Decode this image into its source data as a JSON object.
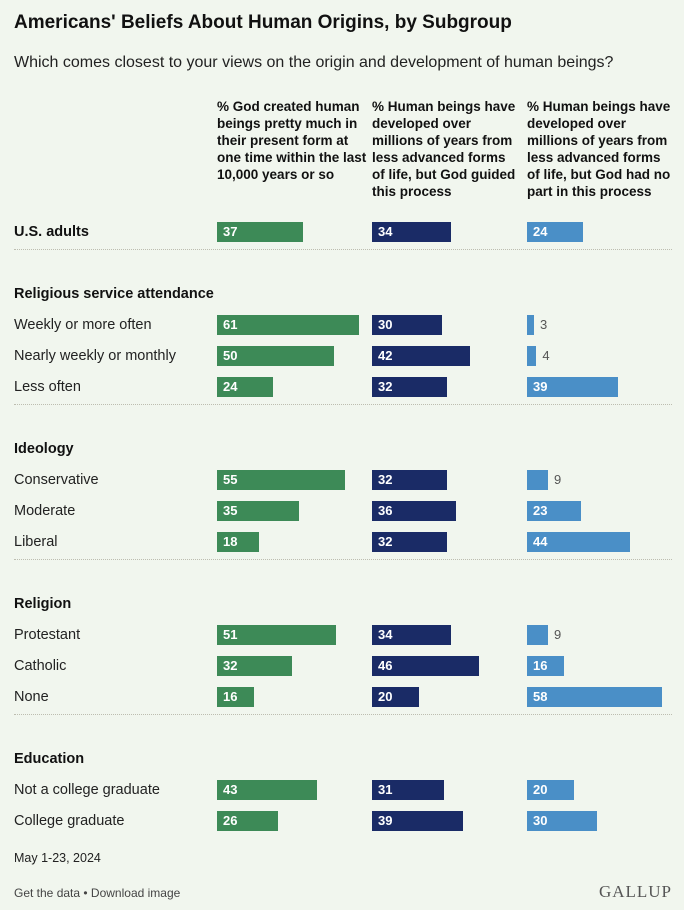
{
  "title": "Americans' Beliefs About Human Origins, by Subgroup",
  "subtitle": "Which comes closest to your views on the origin and development of human beings?",
  "date_note": "May 1-23, 2024",
  "footer": {
    "get_data": "Get the data",
    "separator": " • ",
    "download": "Download image"
  },
  "brand": "GALLUP",
  "colors": {
    "god_created": "#3d8a57",
    "god_guided": "#1a2b66",
    "no_god": "#4a8fc7"
  },
  "chart_data": {
    "type": "bar",
    "unit": "%",
    "series": [
      {
        "name": "% God created human beings pretty much in their present form at one time within the last 10,000 years or so",
        "color": "#3d8a57"
      },
      {
        "name": "% Human beings have developed over millions of years from less advanced forms of life, but God guided this process",
        "color": "#1a2b66"
      },
      {
        "name": "% Human beings have developed over millions of years from less advanced forms of life, but God had no part in this process",
        "color": "#4a8fc7"
      }
    ],
    "xlim": [
      0,
      100
    ],
    "groups": [
      {
        "header": "",
        "rows": [
          {
            "label": "U.S. adults",
            "bold": true,
            "values": [
              37,
              34,
              24
            ]
          }
        ]
      },
      {
        "header": "Religious service attendance",
        "rows": [
          {
            "label": "Weekly or more often",
            "values": [
              61,
              30,
              3
            ]
          },
          {
            "label": "Nearly weekly or monthly",
            "values": [
              50,
              42,
              4
            ]
          },
          {
            "label": "Less often",
            "values": [
              24,
              32,
              39
            ]
          }
        ]
      },
      {
        "header": "Ideology",
        "rows": [
          {
            "label": "Conservative",
            "values": [
              55,
              32,
              9
            ]
          },
          {
            "label": "Moderate",
            "values": [
              35,
              36,
              23
            ]
          },
          {
            "label": "Liberal",
            "values": [
              18,
              32,
              44
            ]
          }
        ]
      },
      {
        "header": "Religion",
        "rows": [
          {
            "label": "Protestant",
            "values": [
              51,
              34,
              9
            ]
          },
          {
            "label": "Catholic",
            "values": [
              32,
              46,
              16
            ]
          },
          {
            "label": "None",
            "values": [
              16,
              20,
              58
            ]
          }
        ]
      },
      {
        "header": "Education",
        "rows": [
          {
            "label": "Not a college graduate",
            "values": [
              43,
              31,
              20
            ]
          },
          {
            "label": "College graduate",
            "values": [
              26,
              39,
              30
            ]
          }
        ]
      }
    ]
  }
}
